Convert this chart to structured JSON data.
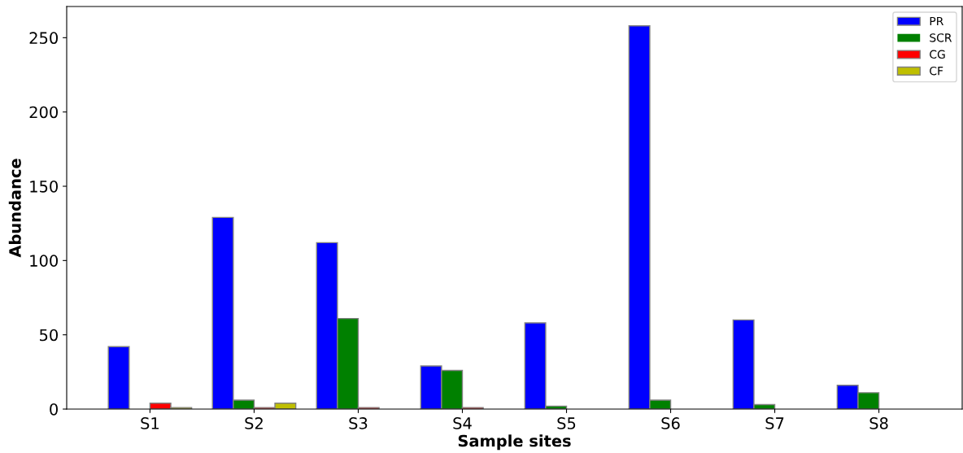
{
  "chart_data": {
    "type": "bar",
    "xlabel": "Sample sites",
    "ylabel": "Abundance",
    "categories": [
      "S1",
      "S2",
      "S3",
      "S4",
      "S5",
      "S6",
      "S7",
      "S8"
    ],
    "series": [
      {
        "name": "PR",
        "color": "#0000ff",
        "values": [
          42,
          129,
          112,
          29,
          58,
          258,
          60,
          16
        ]
      },
      {
        "name": "SCR",
        "color": "#008000",
        "values": [
          0,
          6,
          61,
          26,
          2,
          6,
          3,
          11
        ]
      },
      {
        "name": "CG",
        "color": "#ff0000",
        "values": [
          4,
          1,
          1,
          1,
          0,
          0,
          0,
          0
        ]
      },
      {
        "name": "CF",
        "color": "#bfbf00",
        "values": [
          1,
          4,
          0,
          0,
          0,
          0,
          0,
          0
        ]
      }
    ],
    "ylim": [
      0,
      271
    ],
    "yticks": [
      0,
      50,
      100,
      150,
      200,
      250
    ],
    "grid": false,
    "legend": "top right"
  }
}
